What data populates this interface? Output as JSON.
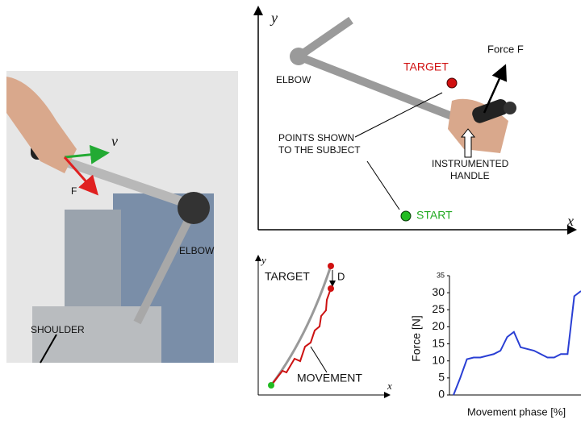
{
  "photo": {
    "velocity_label": "v",
    "force_label": "F",
    "elbow_label": "ELBOW",
    "shoulder_label": "SHOULDER"
  },
  "top_diagram": {
    "y_axis_label": "y",
    "x_axis_label": "x",
    "elbow_label": "ELBOW",
    "target_label": "TARGET",
    "force_label": "Force F",
    "points_label": [
      "POINTS SHOWN",
      "TO THE SUBJECT"
    ],
    "handle_label": [
      "INSTRUMENTED",
      "HANDLE"
    ],
    "start_label": "START"
  },
  "path_diagram": {
    "y_axis_label": "y",
    "x_axis_label": "x",
    "target_label": "TARGET",
    "distance_label": "D",
    "movement_label": "MOVEMENT"
  },
  "force_plot": {
    "type": "line",
    "y_label": "Force [N]",
    "x_label": "Movement phase [%]",
    "ylim": [
      0,
      35
    ],
    "yticks": [
      0,
      5,
      10,
      15,
      20,
      25,
      30,
      35
    ],
    "color": "#2a3fd4",
    "values": [
      0,
      5,
      10.5,
      11,
      11,
      11.5,
      12,
      13,
      17,
      18.5,
      14,
      13.5,
      13,
      12,
      11,
      11,
      12,
      12,
      29,
      30.5
    ]
  }
}
